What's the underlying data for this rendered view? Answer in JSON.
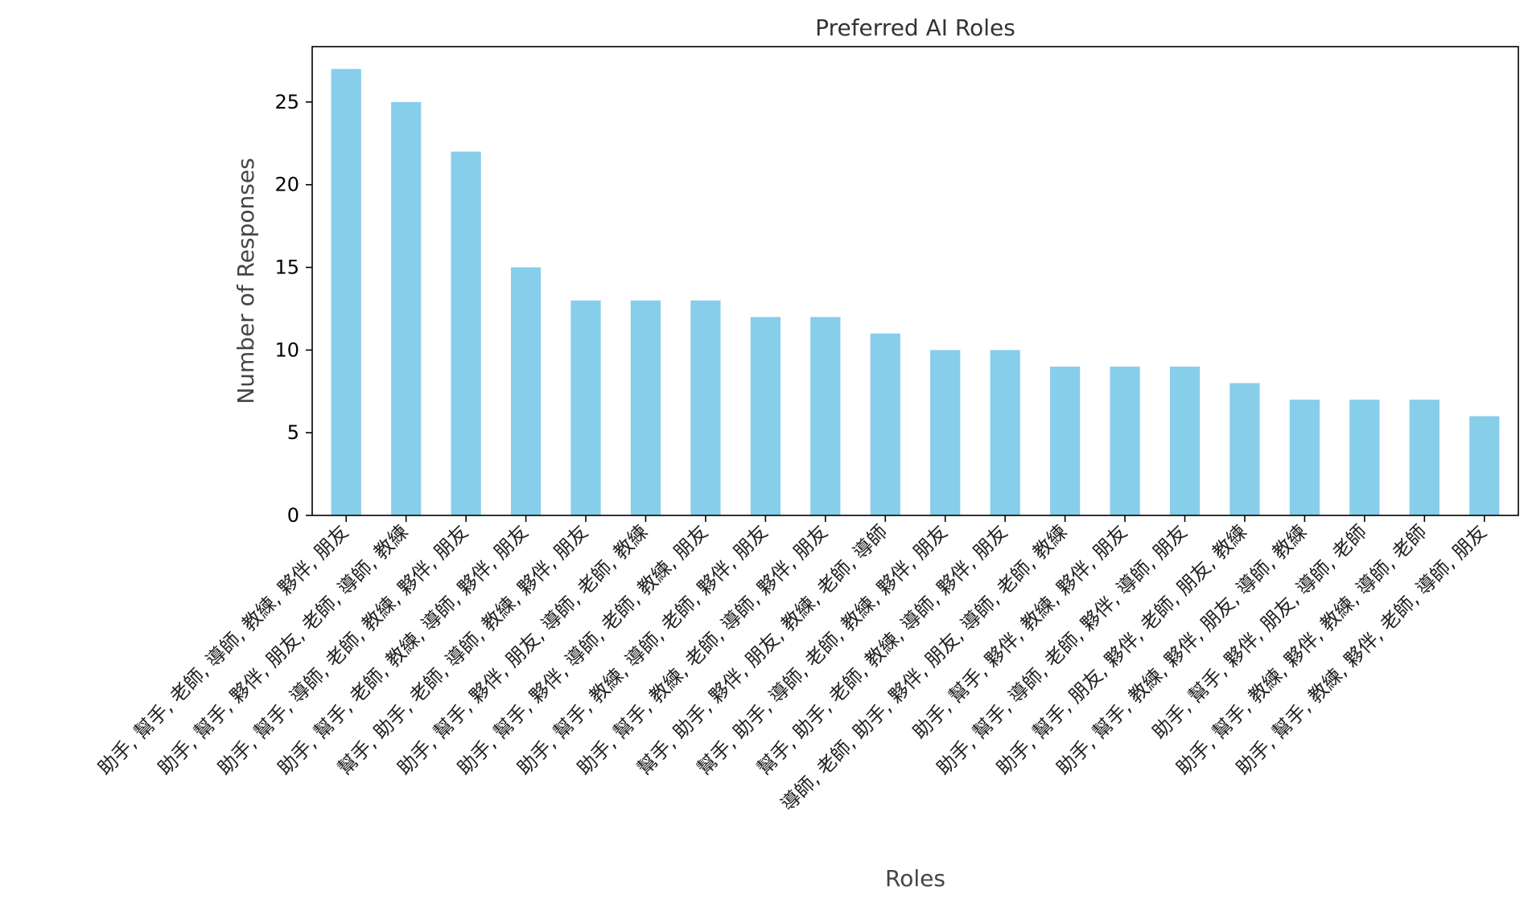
{
  "chart_data": {
    "type": "bar",
    "title": "Preferred AI Roles",
    "xlabel": "Roles",
    "ylabel": "Number of Responses",
    "ylim": [
      0,
      28.35
    ],
    "yticks": [
      0,
      5,
      10,
      15,
      20,
      25
    ],
    "grid": false,
    "legend": "none",
    "bar_color": "#87ceeb",
    "categories": [
      "助手, 幫手, 老師, 導師, 教練, 夥伴, 朋友",
      "助手, 幫手, 夥伴, 朋友, 老師, 導師, 教練",
      "助手, 幫手, 導師, 老師, 教練, 夥伴, 朋友",
      "助手, 幫手, 老師, 教練, 導師, 夥伴, 朋友",
      "幫手, 助手, 老師, 導師, 教練, 夥伴, 朋友",
      "助手, 幫手, 夥伴, 朋友, 導師, 老師, 教練",
      "助手, 幫手, 夥伴, 導師, 老師, 教練, 朋友",
      "助手, 幫手, 教練, 導師, 老師, 夥伴, 朋友",
      "助手, 幫手, 教練, 老師, 導師, 夥伴, 朋友",
      "幫手, 助手, 夥伴, 朋友, 教練, 老師, 導師",
      "幫手, 助手, 導師, 老師, 教練, 夥伴, 朋友",
      "幫手, 助手, 老師, 教練, 導師, 夥伴, 朋友",
      "導師, 老師, 助手, 夥伴, 朋友, 導師, 老師, 教練",
      "助手, 幫手, 夥伴, 教練, 夥伴, 朋友",
      "助手, 幫手, 導師, 老師, 夥伴, 導師, 朋友",
      "助手, 幫手, 朋友, 夥伴, 老師, 朋友, 教練",
      "助手, 幫手, 教練, 夥伴, 朋友, 導師, 教練",
      "助手, 幫手, 夥伴, 朋友, 導師, 老師",
      "助手, 幫手, 教練, 夥伴, 教練, 導師, 老師",
      "助手, 幫手, 教練, 夥伴, 老師, 導師, 朋友"
    ],
    "values": [
      27,
      25,
      22,
      15,
      13,
      13,
      13,
      12,
      12,
      11,
      10,
      10,
      9,
      9,
      9,
      8,
      7,
      7,
      7,
      6
    ]
  }
}
